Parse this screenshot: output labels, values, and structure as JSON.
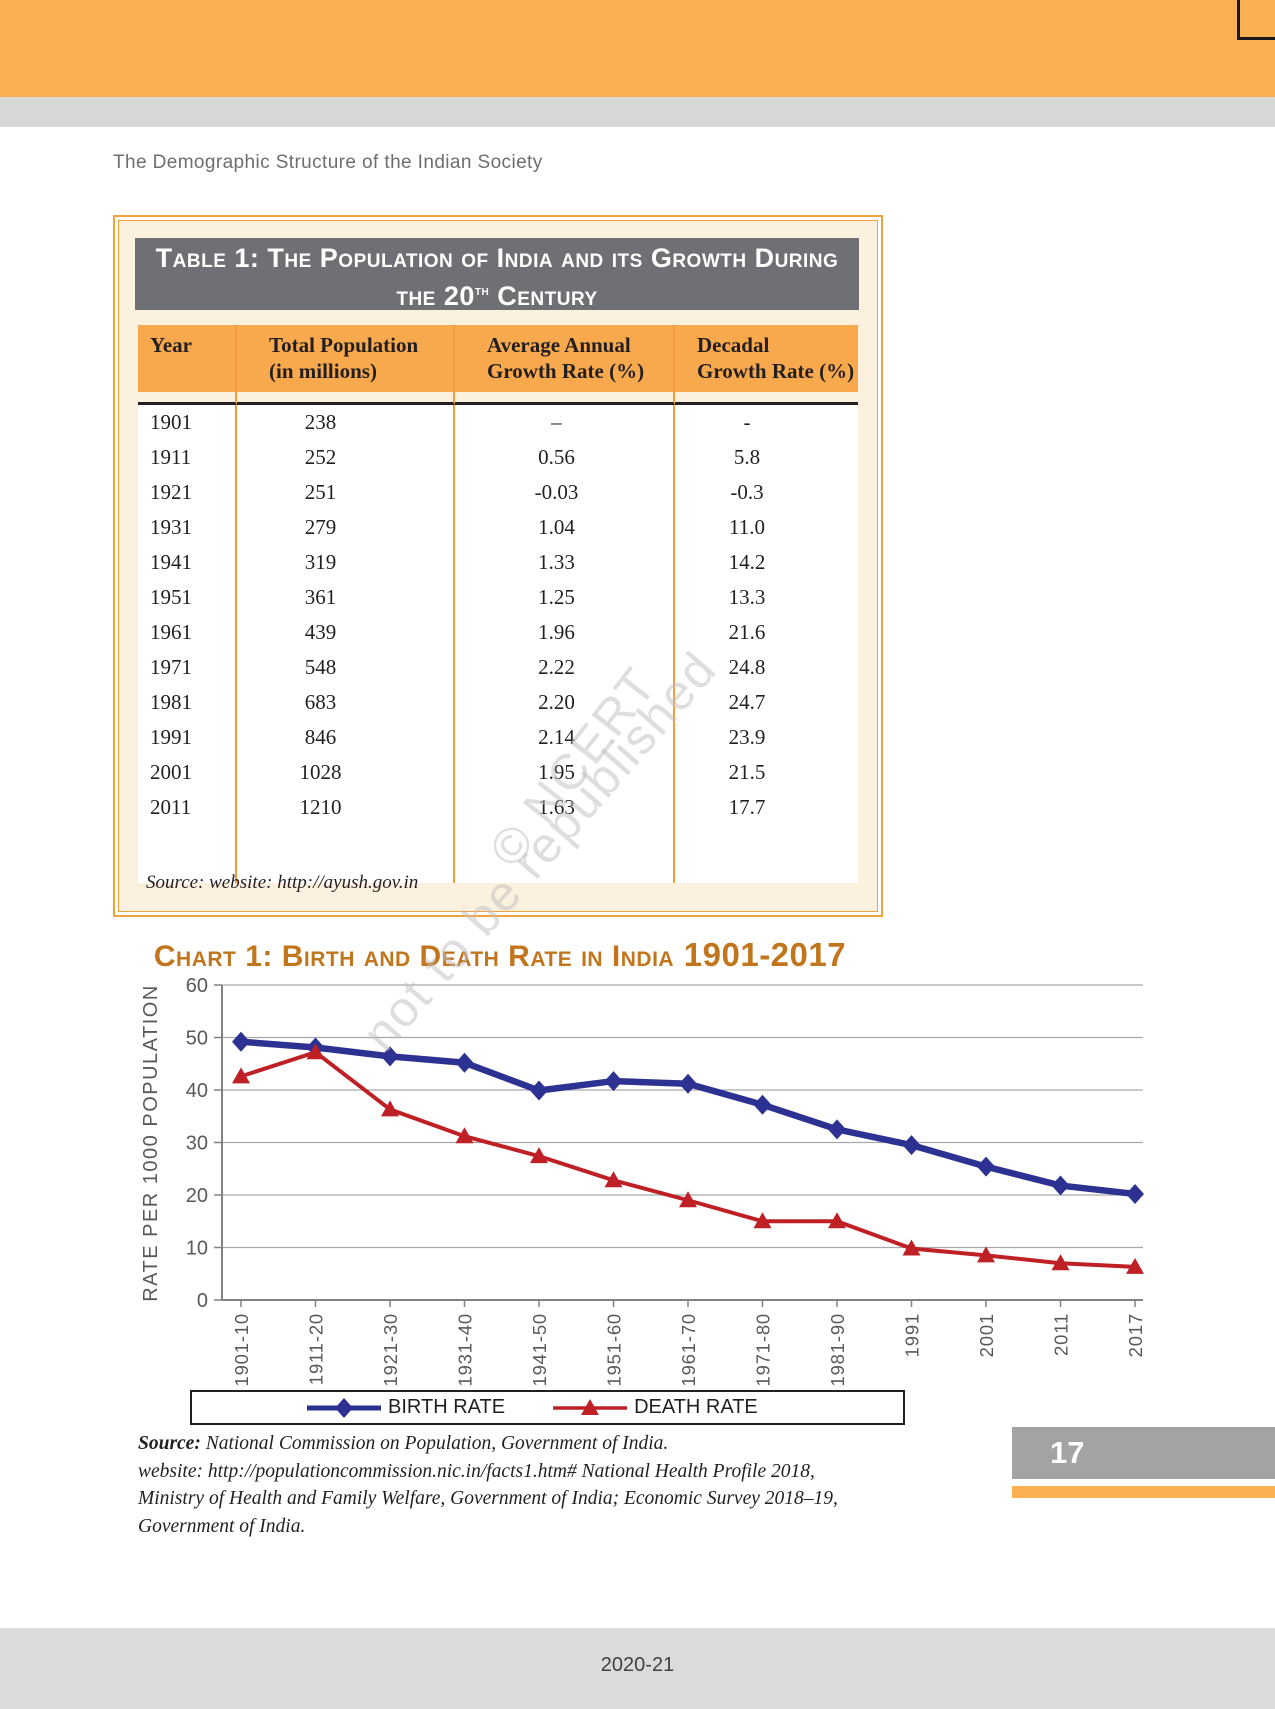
{
  "page": {
    "running_head": "The Demographic Structure of the Indian Society",
    "page_number": "17",
    "footer_text": "2020-21",
    "watermark_line1": "© NCERT",
    "watermark_line2": "not to be republished"
  },
  "table1": {
    "title_line1": "Table 1: The Population of India and its Growth During",
    "title_line2_pre": "the 20",
    "title_line2_sup": "th",
    "title_line2_post": " Century",
    "columns": [
      {
        "line1": "Year",
        "line2": ""
      },
      {
        "line1": "Total Population",
        "line2": "(in millions)"
      },
      {
        "line1": "Average Annual",
        "line2": "Growth Rate (%)"
      },
      {
        "line1": "Decadal",
        "line2": "Growth Rate (%)"
      }
    ],
    "rows": [
      [
        "1901",
        "238",
        "–",
        "-"
      ],
      [
        "1911",
        "252",
        "0.56",
        "5.8"
      ],
      [
        "1921",
        "251",
        "-0.03",
        "-0.3"
      ],
      [
        "1931",
        "279",
        "1.04",
        "11.0"
      ],
      [
        "1941",
        "319",
        "1.33",
        "14.2"
      ],
      [
        "1951",
        "361",
        "1.25",
        "13.3"
      ],
      [
        "1961",
        "439",
        "1.96",
        "21.6"
      ],
      [
        "1971",
        "548",
        "2.22",
        "24.8"
      ],
      [
        "1981",
        "683",
        "2.20",
        "24.7"
      ],
      [
        "1991",
        "846",
        "2.14",
        "23.9"
      ],
      [
        "2001",
        "1028",
        "1.95",
        "21.5"
      ],
      [
        "2011",
        "1210",
        "1.63",
        "17.7"
      ]
    ],
    "source": "Source: website: http://ayush.gov.in"
  },
  "chart_data": {
    "type": "line",
    "title_main": "Chart 1: Birth and Death Rate in India",
    "title_years": " 1901-2017",
    "ylabel": "RATE PER 1000 POPULATION",
    "categories": [
      "1901-10",
      "1911-20",
      "1921-30",
      "1931-40",
      "1941-50",
      "1951-60",
      "1961-70",
      "1971-80",
      "1981-90",
      "1991",
      "2001",
      "2011",
      "2017"
    ],
    "series": [
      {
        "name": "BIRTH RATE",
        "color": "#2D3192",
        "marker": "diamond",
        "values": [
          49.2,
          48.1,
          46.4,
          45.2,
          39.9,
          41.7,
          41.2,
          37.2,
          32.5,
          29.5,
          25.4,
          21.8,
          20.2
        ]
      },
      {
        "name": "DEATH RATE",
        "color": "#BF2026",
        "marker": "triangle",
        "values": [
          42.6,
          47.2,
          36.3,
          31.2,
          27.4,
          22.8,
          19.0,
          15.0,
          15.0,
          9.8,
          8.5,
          7.0,
          6.3
        ]
      }
    ],
    "ylim": [
      0,
      60
    ],
    "yticks": [
      0,
      10,
      20,
      30,
      40,
      50,
      60
    ],
    "grid": true,
    "legend_position": "bottom"
  },
  "chart_source": {
    "bold": "Source:",
    "line1_rest": " National Commission on Population, Government of India.",
    "line2": "website: http://populationcommission.nic.in/facts1.htm# National Health Profile 2018,",
    "line3": "Ministry of Health and Family Welfare, Government of India; Economic Survey 2018–19,",
    "line4": "Government of India."
  }
}
